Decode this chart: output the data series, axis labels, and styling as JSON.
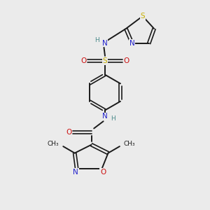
{
  "bg_color": "#ebebeb",
  "bond_color": "#1a1a1a",
  "N_color": "#2222cc",
  "O_color": "#cc1111",
  "S_color": "#c8b000",
  "H_color": "#4a8a8a",
  "fig_width": 3.0,
  "fig_height": 3.0,
  "dpi": 100,
  "xlim": [
    0,
    10
  ],
  "ylim": [
    0,
    10
  ]
}
